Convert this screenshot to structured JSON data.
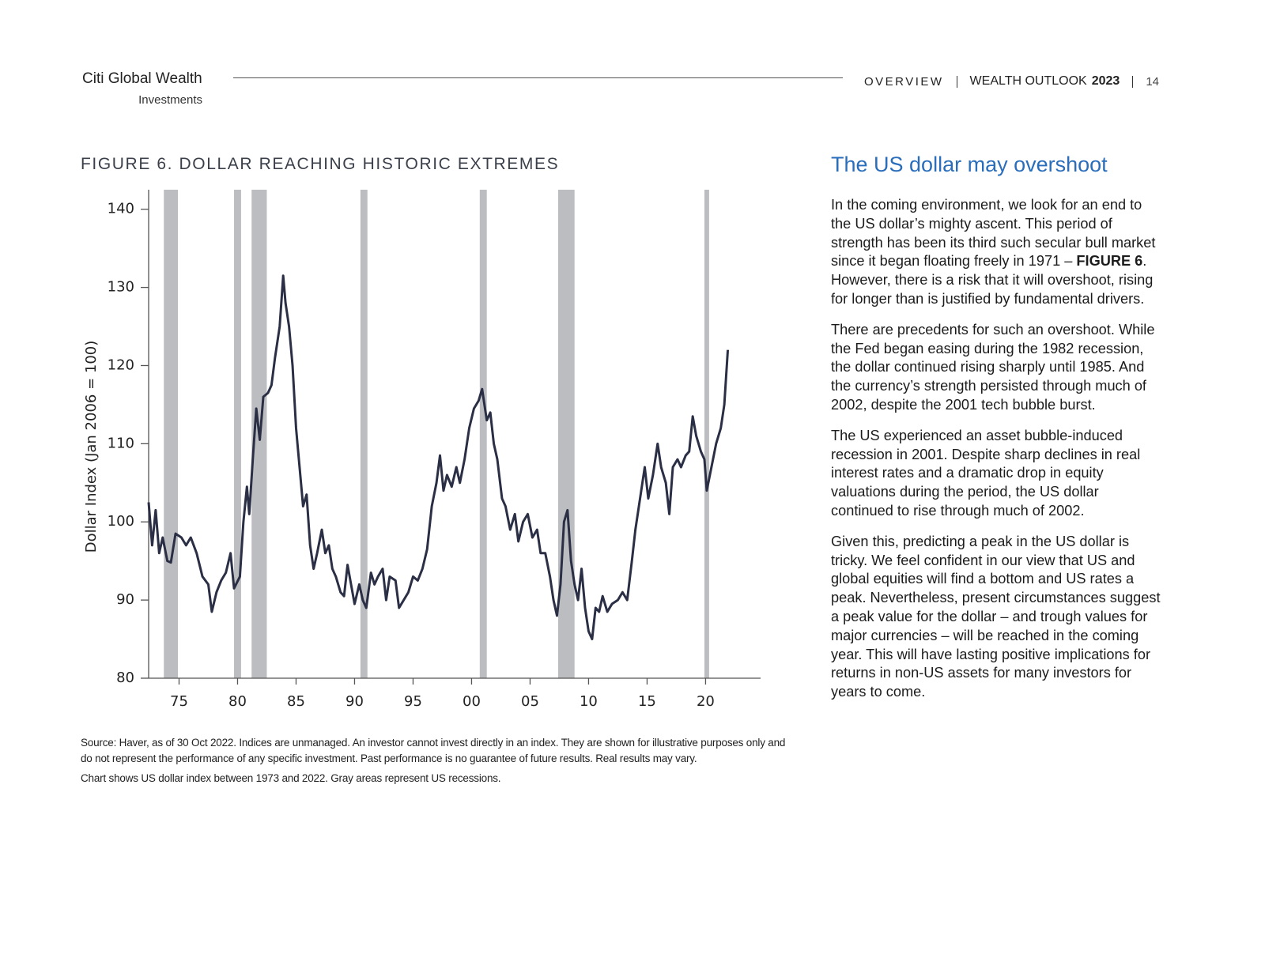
{
  "header": {
    "brand": "Citi Global Wealth",
    "brand_sub": "Investments",
    "section": "OVERVIEW",
    "publication": "WEALTH OUTLOOK",
    "year": "2023",
    "page": "14"
  },
  "chart_data": {
    "type": "line",
    "title": "FIGURE 6. DOLLAR REACHING HISTORIC EXTREMES",
    "y_label": "Dollar Index (Jan 2006 = 100)",
    "color": "#2b2f45",
    "recession_color": "#bcbdc0",
    "recessions": [
      [
        1973.7,
        1974.9
      ],
      [
        1979.7,
        1980.3
      ],
      [
        1981.2,
        1982.5
      ],
      [
        1990.5,
        1991.1
      ],
      [
        2000.7,
        2001.3
      ],
      [
        2007.4,
        2008.8
      ],
      [
        2019.9,
        2020.3
      ]
    ],
    "x": [
      1972.4,
      1972.7,
      1973.0,
      1973.3,
      1973.6,
      1974.0,
      1974.3,
      1974.7,
      1975.2,
      1975.6,
      1976.0,
      1976.5,
      1977.0,
      1977.5,
      1977.8,
      1978.2,
      1978.6,
      1979.0,
      1979.4,
      1979.7,
      1980.2,
      1980.5,
      1980.8,
      1981.0,
      1981.3,
      1981.6,
      1981.9,
      1982.2,
      1982.6,
      1982.9,
      1983.2,
      1983.6,
      1983.9,
      1984.1,
      1984.4,
      1984.7,
      1985.0,
      1985.3,
      1985.6,
      1985.9,
      1986.2,
      1986.5,
      1986.8,
      1987.2,
      1987.5,
      1987.8,
      1988.1,
      1988.4,
      1988.8,
      1989.1,
      1989.4,
      1989.7,
      1990.0,
      1990.4,
      1990.7,
      1991.0,
      1991.4,
      1991.7,
      1992.0,
      1992.4,
      1992.7,
      1993.0,
      1993.5,
      1993.8,
      1994.2,
      1994.6,
      1995.0,
      1995.4,
      1995.8,
      1996.2,
      1996.6,
      1997.0,
      1997.3,
      1997.6,
      1997.9,
      1998.3,
      1998.7,
      1999.0,
      1999.4,
      1999.8,
      2000.2,
      2000.6,
      2000.9,
      2001.3,
      2001.6,
      2001.9,
      2002.2,
      2002.6,
      2002.9,
      2003.3,
      2003.7,
      2004.0,
      2004.4,
      2004.8,
      2005.2,
      2005.6,
      2005.9,
      2006.3,
      2006.7,
      2007.0,
      2007.3,
      2007.6,
      2007.9,
      2008.2,
      2008.5,
      2008.8,
      2009.1,
      2009.4,
      2009.7,
      2010.0,
      2010.3,
      2010.6,
      2010.9,
      2011.2,
      2011.6,
      2012.0,
      2012.5,
      2012.9,
      2013.3,
      2013.7,
      2014.0,
      2014.4,
      2014.8,
      2015.1,
      2015.5,
      2015.9,
      2016.2,
      2016.6,
      2016.9,
      2017.2,
      2017.6,
      2017.9,
      2018.3,
      2018.6,
      2018.9,
      2019.2,
      2019.6,
      2019.9,
      2020.1,
      2020.5,
      2020.9,
      2021.3,
      2021.6,
      2021.9
    ],
    "values": [
      102.5,
      97,
      101.5,
      96,
      98,
      95,
      94.8,
      98.5,
      98,
      97,
      98,
      96,
      93,
      92,
      88.5,
      91,
      92.5,
      93.5,
      96,
      91.5,
      93,
      100,
      104.5,
      101,
      108,
      114.5,
      110.5,
      116,
      116.5,
      117.5,
      121,
      125,
      131.5,
      128,
      125,
      120,
      112,
      107,
      102,
      103.5,
      97,
      94,
      96,
      99,
      96,
      97,
      94,
      93,
      91,
      90.5,
      94.5,
      92,
      89.5,
      92,
      90,
      89,
      93.5,
      92,
      93,
      94,
      90,
      93,
      92.5,
      89,
      90,
      91,
      93,
      92.5,
      94,
      96.5,
      102,
      105,
      108.5,
      104,
      106,
      104.5,
      107,
      105,
      108,
      112,
      114.5,
      115.5,
      117,
      113,
      114,
      110,
      108,
      103,
      102,
      99,
      101,
      97.5,
      100,
      101,
      98,
      99,
      96,
      96,
      93,
      90,
      88,
      92,
      100,
      101.5,
      95,
      92,
      90,
      94,
      89,
      86,
      85,
      89,
      88.5,
      90.5,
      88.5,
      89.5,
      90,
      91,
      90,
      95,
      99,
      103,
      107,
      103,
      106,
      110,
      107,
      105,
      101,
      107,
      108,
      107,
      108.5,
      109,
      113.5,
      111,
      109,
      108,
      104,
      107,
      110,
      112,
      115,
      122
    ],
    "xlim": [
      1972.4,
      2024.7
    ],
    "ylim": [
      80,
      142.5
    ],
    "xticks": [
      {
        "value": 1975,
        "label": "75"
      },
      {
        "value": 1980,
        "label": "80"
      },
      {
        "value": 1985,
        "label": "85"
      },
      {
        "value": 1990,
        "label": "90"
      },
      {
        "value": 1995,
        "label": "95"
      },
      {
        "value": 2000,
        "label": "00"
      },
      {
        "value": 2005,
        "label": "05"
      },
      {
        "value": 2010,
        "label": "10"
      },
      {
        "value": 2015,
        "label": "15"
      },
      {
        "value": 2020,
        "label": "20"
      }
    ],
    "yticks": [
      80,
      90,
      100,
      110,
      120,
      130,
      140
    ],
    "grid": false,
    "source": "Source: Haver, as of 30 Oct 2022. Indices are unmanaged. An investor cannot invest directly in an index. They are shown for illustrative purposes only and do not represent the performance of any specific investment. Past performance is no guarantee of future results. Real results may vary.",
    "note": "Chart shows US dollar index between 1973 and 2022. Gray areas represent US recessions."
  },
  "sidebar": {
    "heading": "The US dollar may overshoot",
    "paragraph_1": {
      "before": "In the coming environment, we look for an end to the US dollar’s mighty ascent. This period of strength has been its third such secular bull market since it began floating freely in 1971 – ",
      "ref": "FIGURE 6",
      "after": ". However, there is a risk that it will overshoot, rising for longer than is justified by fundamental drivers."
    },
    "paragraphs": [
      "There are precedents for such an overshoot. While the Fed began easing during the 1982 recession, the dollar continued rising sharply until 1985. And the currency’s strength persisted through much of 2002, despite the 2001 tech bubble burst.",
      "The US experienced an asset bubble-induced recession in 2001. Despite sharp declines in real interest rates and a dramatic drop in equity valuations during the period, the US dollar continued to rise through much of 2002.",
      "Given this, predicting a peak in the US dollar is tricky. We feel confident in our view that US and global equities will find a bottom and US rates a peak. Nevertheless, present circumstances suggest a peak value for the dollar – and trough values for major currencies – will be reached in the coming year. This will have lasting positive implications for returns in non-US assets for many investors for years to come."
    ]
  }
}
